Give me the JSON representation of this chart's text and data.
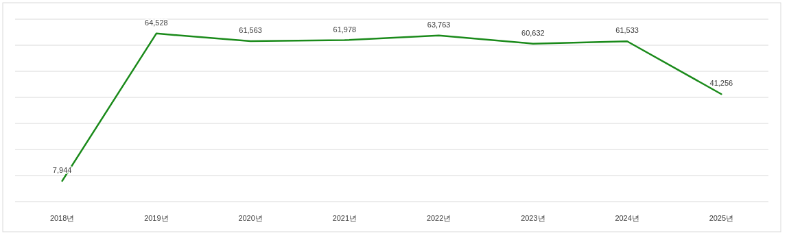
{
  "chart_data": {
    "type": "line",
    "categories": [
      "2018년",
      "2019년",
      "2020년",
      "2021년",
      "2022년",
      "2023년",
      "2024년",
      "2025년"
    ],
    "series": [
      {
        "color": "#1a8a1a",
        "values": [
          7944,
          64528,
          61563,
          61978,
          63763,
          60632,
          61533,
          41256
        ],
        "value_labels": [
          "7,944",
          "64,528",
          "61,563",
          "61,978",
          "63,763",
          "60,632",
          "61,533",
          "41,256"
        ]
      }
    ],
    "grid": "y",
    "tick_labels": "x"
  }
}
